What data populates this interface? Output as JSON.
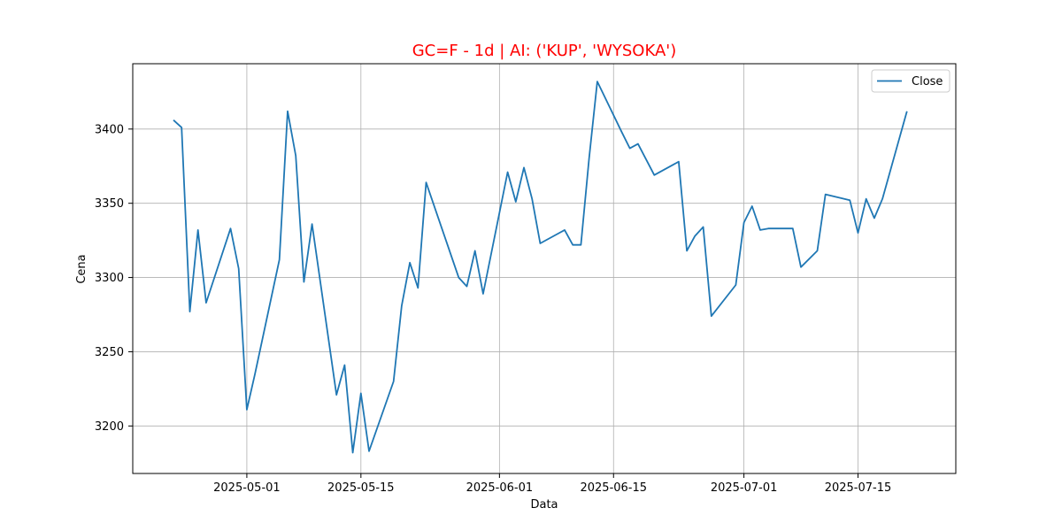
{
  "chart_data": {
    "type": "line",
    "title": "GC=F - 1d | AI: ('KUP', 'WYSOKA')",
    "title_color": "#ff0000",
    "xlabel": "Data",
    "ylabel": "Cena",
    "grid": true,
    "legend_position": "top-right",
    "x_tick_labels": [
      "2025-05-01",
      "2025-05-15",
      "2025-06-01",
      "2025-06-15",
      "2025-07-01",
      "2025-07-15"
    ],
    "y_ticks": [
      3200,
      3250,
      3300,
      3350,
      3400
    ],
    "xlim": [
      "2025-04-17",
      "2025-07-27"
    ],
    "ylim": [
      3168,
      3444
    ],
    "series": [
      {
        "name": "Close",
        "color": "#1f77b4",
        "points": [
          [
            "2025-04-22",
            3406
          ],
          [
            "2025-04-23",
            3401
          ],
          [
            "2025-04-24",
            3277
          ],
          [
            "2025-04-25",
            3332
          ],
          [
            "2025-04-26",
            3283
          ],
          [
            "2025-04-29",
            3333
          ],
          [
            "2025-04-30",
            3306
          ],
          [
            "2025-05-01",
            3211
          ],
          [
            "2025-05-02",
            3235
          ],
          [
            "2025-05-05",
            3312
          ],
          [
            "2025-05-06",
            3412
          ],
          [
            "2025-05-07",
            3382
          ],
          [
            "2025-05-08",
            3297
          ],
          [
            "2025-05-09",
            3336
          ],
          [
            "2025-05-12",
            3221
          ],
          [
            "2025-05-13",
            3241
          ],
          [
            "2025-05-14",
            3182
          ],
          [
            "2025-05-15",
            3222
          ],
          [
            "2025-05-16",
            3183
          ],
          [
            "2025-05-19",
            3230
          ],
          [
            "2025-05-20",
            3281
          ],
          [
            "2025-05-21",
            3310
          ],
          [
            "2025-05-22",
            3293
          ],
          [
            "2025-05-23",
            3364
          ],
          [
            "2025-05-27",
            3300
          ],
          [
            "2025-05-28",
            3294
          ],
          [
            "2025-05-29",
            3318
          ],
          [
            "2025-05-30",
            3289
          ],
          [
            "2025-06-02",
            3371
          ],
          [
            "2025-06-03",
            3351
          ],
          [
            "2025-06-04",
            3374
          ],
          [
            "2025-06-05",
            3353
          ],
          [
            "2025-06-06",
            3323
          ],
          [
            "2025-06-09",
            3332
          ],
          [
            "2025-06-10",
            3322
          ],
          [
            "2025-06-11",
            3322
          ],
          [
            "2025-06-12",
            3380
          ],
          [
            "2025-06-13",
            3432
          ],
          [
            "2025-06-16",
            3398
          ],
          [
            "2025-06-17",
            3387
          ],
          [
            "2025-06-18",
            3390
          ],
          [
            "2025-06-20",
            3369
          ],
          [
            "2025-06-23",
            3378
          ],
          [
            "2025-06-24",
            3318
          ],
          [
            "2025-06-25",
            3328
          ],
          [
            "2025-06-26",
            3334
          ],
          [
            "2025-06-27",
            3274
          ],
          [
            "2025-06-30",
            3295
          ],
          [
            "2025-07-01",
            3337
          ],
          [
            "2025-07-02",
            3348
          ],
          [
            "2025-07-03",
            3332
          ],
          [
            "2025-07-04",
            3333
          ],
          [
            "2025-07-07",
            3333
          ],
          [
            "2025-07-08",
            3307
          ],
          [
            "2025-07-10",
            3318
          ],
          [
            "2025-07-11",
            3356
          ],
          [
            "2025-07-14",
            3352
          ],
          [
            "2025-07-15",
            3330
          ],
          [
            "2025-07-16",
            3353
          ],
          [
            "2025-07-17",
            3340
          ],
          [
            "2025-07-18",
            3353
          ],
          [
            "2025-07-21",
            3412
          ]
        ]
      }
    ]
  }
}
